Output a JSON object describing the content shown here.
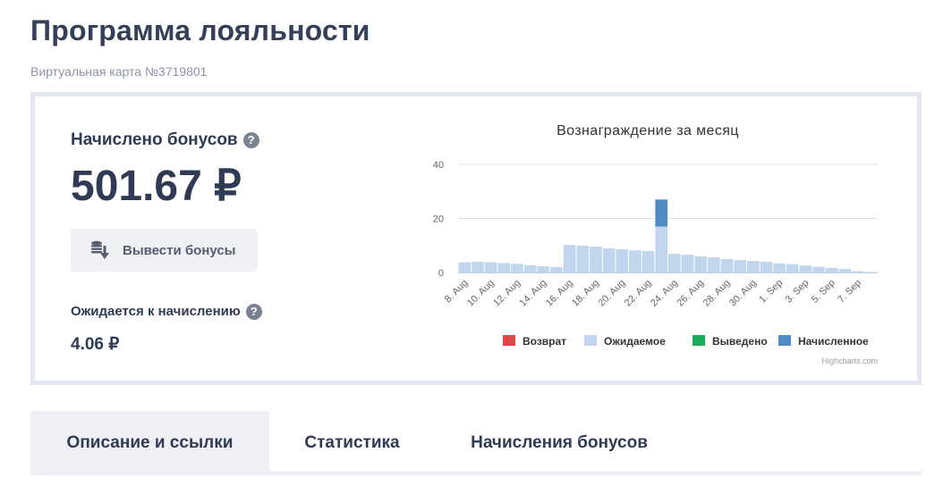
{
  "page": {
    "title": "Программа лояльности",
    "card_number": "Виртуальная карта №3719801"
  },
  "bonus": {
    "label": "Начислено бонусов",
    "value": "501.67 ₽",
    "withdraw_label": "Вывести бонусы",
    "pending_label": "Ожидается к начислению",
    "pending_value": "4.06 ₽",
    "help_glyph": "?"
  },
  "tabs": [
    {
      "label": "Описание и ссылки",
      "active": true
    },
    {
      "label": "Статистика",
      "active": false
    },
    {
      "label": "Начисления бонусов",
      "active": false
    }
  ],
  "chart_data": {
    "type": "bar",
    "stacked": true,
    "title": "Вознаграждение за месяц",
    "credits": "Highcharts.com",
    "ylim": [
      0,
      40
    ],
    "yticks": [
      0,
      20,
      40
    ],
    "grid": true,
    "legend_position": "bottom",
    "categories": [
      "8. Aug",
      "9. Aug",
      "10. Aug",
      "11. Aug",
      "12. Aug",
      "13. Aug",
      "14. Aug",
      "15. Aug",
      "16. Aug",
      "17. Aug",
      "18. Aug",
      "19. Aug",
      "20. Aug",
      "21. Aug",
      "22. Aug",
      "23. Aug",
      "24. Aug",
      "25. Aug",
      "26. Aug",
      "27. Aug",
      "28. Aug",
      "29. Aug",
      "30. Aug",
      "31. Aug",
      "1. Sep",
      "2. Sep",
      "3. Sep",
      "4. Sep",
      "5. Sep",
      "6. Sep",
      "7. Sep",
      "8. Sep"
    ],
    "x_tick_labels": [
      "8. Aug",
      "10. Aug",
      "12. Aug",
      "14. Aug",
      "16. Aug",
      "18. Aug",
      "20. Aug",
      "22. Aug",
      "24. Aug",
      "26. Aug",
      "28. Aug",
      "30. Aug",
      "1. Sep",
      "3. Sep",
      "5. Sep",
      "7. Sep"
    ],
    "series": [
      {
        "name": "Возврат",
        "color": "#e0454a",
        "values": [
          0,
          0,
          0,
          0,
          0,
          0,
          0,
          0,
          0,
          0,
          0,
          0,
          0,
          0,
          0,
          0,
          0,
          0,
          0,
          0,
          0,
          0,
          0,
          0,
          0,
          0,
          0,
          0,
          0,
          0,
          0,
          0
        ]
      },
      {
        "name": "Ожидаемое",
        "color": "#c2d5ee",
        "values": [
          3.8,
          4.0,
          3.8,
          3.5,
          3.2,
          2.7,
          2.3,
          2.0,
          10.2,
          9.9,
          9.6,
          8.9,
          8.6,
          8.2,
          8.0,
          17.0,
          6.9,
          6.6,
          6.0,
          5.6,
          5.0,
          4.6,
          4.3,
          4.0,
          3.4,
          3.1,
          2.6,
          2.1,
          1.7,
          1.3,
          0.5,
          0.2
        ]
      },
      {
        "name": "Выведено",
        "color": "#17ad5a",
        "values": [
          0,
          0,
          0,
          0,
          0,
          0,
          0,
          0,
          0,
          0,
          0,
          0,
          0,
          0,
          0,
          0,
          0,
          0,
          0,
          0,
          0,
          0,
          0,
          0,
          0,
          0,
          0,
          0,
          0,
          0,
          0,
          0
        ]
      },
      {
        "name": "Начисленное",
        "color": "#4f8bc0",
        "values": [
          0,
          0,
          0,
          0,
          0,
          0,
          0,
          0,
          0,
          0,
          0,
          0,
          0,
          0,
          0,
          10.0,
          0,
          0,
          0,
          0,
          0,
          0,
          0,
          0,
          0,
          0,
          0,
          0,
          0,
          0,
          0,
          0
        ]
      }
    ]
  }
}
